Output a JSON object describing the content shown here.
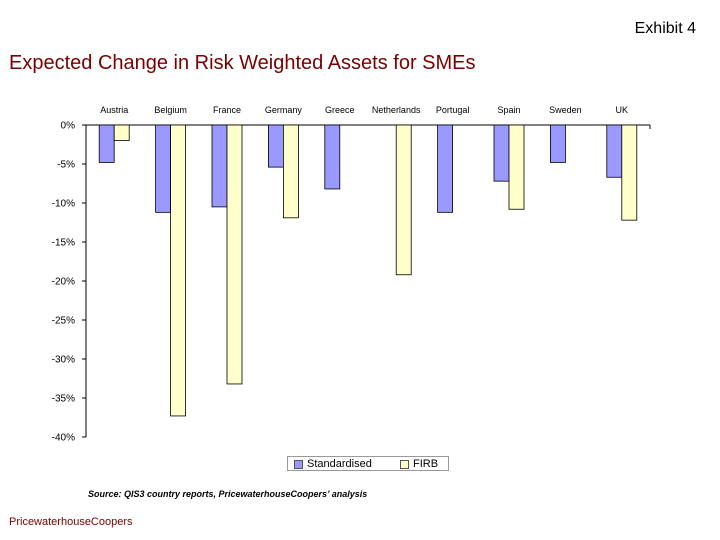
{
  "header": {
    "exhibit": "Exhibit 4",
    "title": "Expected Change in Risk Weighted Assets for SMEs"
  },
  "footer": {
    "source": "Source: QIS3 country reports, PricewaterhouseCoopers’ analysis",
    "company": "PricewaterhouseCoopers"
  },
  "chart_data": {
    "type": "bar",
    "title": "Expected Change in Risk Weighted Assets for SMEs",
    "categories": [
      "Austria",
      "Belgium",
      "France",
      "Germany",
      "Greece",
      "Netherlands",
      "Portugal",
      "Spain",
      "Sweden",
      "UK"
    ],
    "series": [
      {
        "name": "Standardised",
        "color": "#9999ff",
        "values": [
          -4.8,
          -11.2,
          -10.5,
          -5.4,
          -8.2,
          null,
          -11.2,
          -7.2,
          -4.8,
          -6.7
        ]
      },
      {
        "name": "FIRB",
        "color": "#ffffcc",
        "values": [
          -2.0,
          -37.3,
          -33.2,
          -11.9,
          null,
          -19.2,
          null,
          -10.8,
          null,
          -12.2
        ]
      }
    ],
    "yticks": [
      "0%",
      "-5%",
      "-10%",
      "-15%",
      "-20%",
      "-25%",
      "-30%",
      "-35%",
      "-40%"
    ],
    "ylim": [
      -40,
      0
    ],
    "xlabel": "",
    "ylabel": "",
    "legend": "bottom",
    "grid": false
  }
}
